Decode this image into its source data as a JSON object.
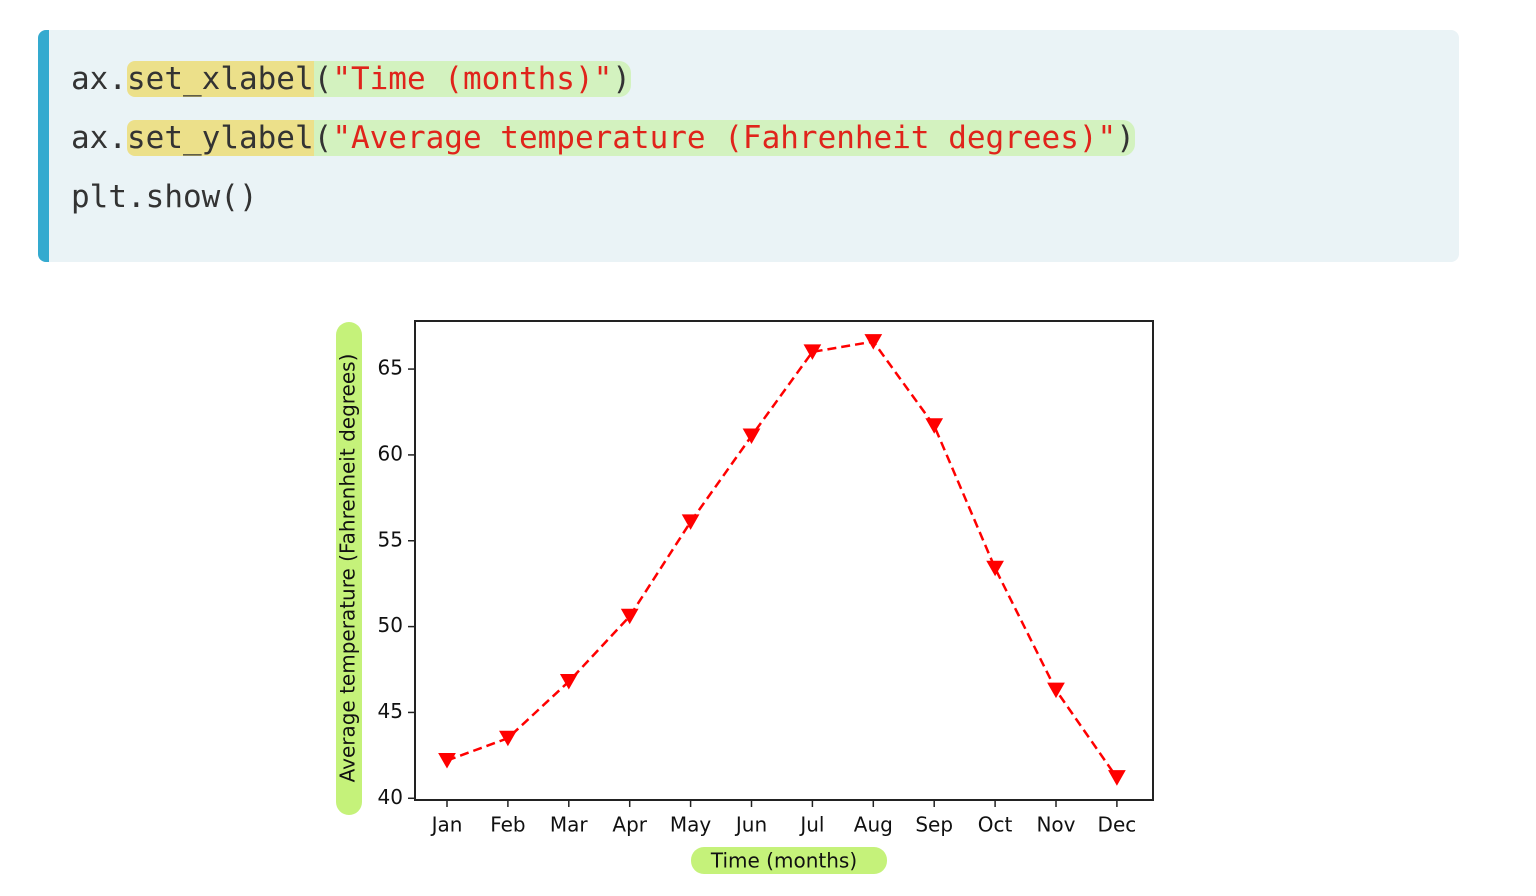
{
  "code": {
    "line1": {
      "obj": "ax.",
      "method": "set_xlabel",
      "open": "(",
      "string": "\"Time (months)\"",
      "close": ")"
    },
    "line2": {
      "obj": "ax.",
      "method": "set_ylabel",
      "open": "(",
      "string": "\"Average temperature (Fahrenheit degrees)\"",
      "close": ")"
    },
    "line3": "plt.show()"
  },
  "colors": {
    "code_bg": "#eaf3f6",
    "accent_bar": "#34aacf",
    "method_highlight": "#ece08a",
    "arg_highlight": "#d3f2bf",
    "string_color": "#e0241b",
    "series_color": "#ff0000",
    "label_highlight": "#c5f27a"
  },
  "chart_data": {
    "type": "line",
    "xlabel": "Time (months)",
    "ylabel": "Average temperature (Fahrenheit degrees)",
    "categories": [
      "Jan",
      "Feb",
      "Mar",
      "Apr",
      "May",
      "Jun",
      "Jul",
      "Aug",
      "Sep",
      "Oct",
      "Nov",
      "Dec"
    ],
    "series": [
      {
        "values": [
          42.2,
          43.5,
          46.8,
          50.6,
          56.1,
          61.1,
          66.0,
          66.6,
          61.7,
          53.4,
          46.3,
          41.2
        ],
        "line_style": "dashed",
        "marker": "triangle-down",
        "color": "#ff0000"
      }
    ],
    "yticks": [
      40,
      45,
      50,
      55,
      60,
      65
    ],
    "ylim": [
      39.9,
      67.8
    ],
    "grid": false,
    "legend": false
  }
}
